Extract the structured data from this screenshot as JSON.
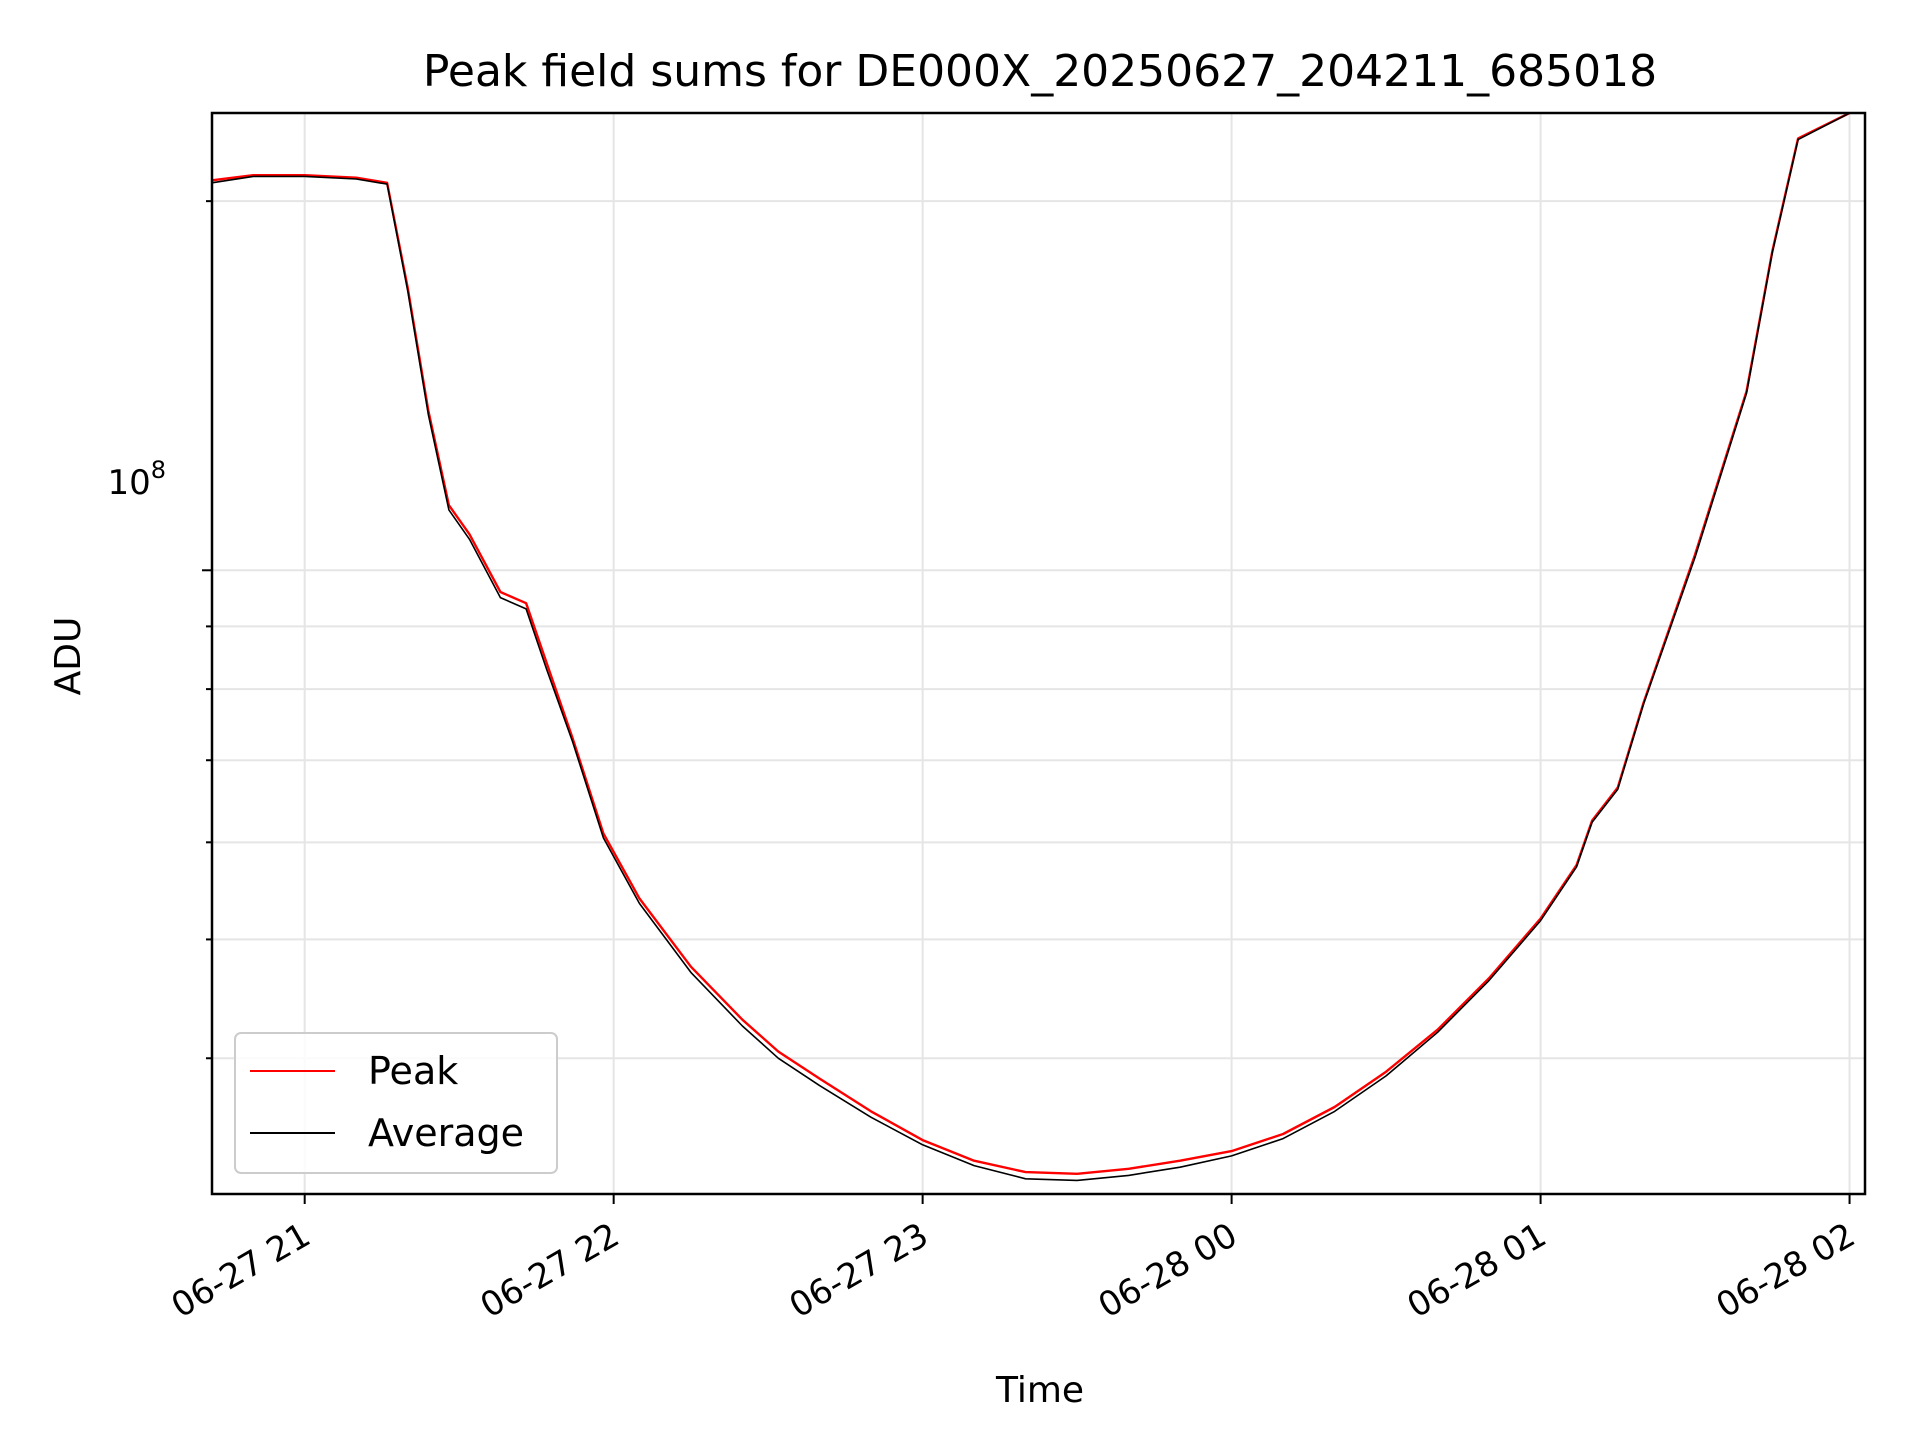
{
  "chart_data": {
    "type": "line",
    "title": "Peak field sums for DE000X_20250627_204211_685018",
    "xlabel": "Time",
    "ylabel": "ADU",
    "yscale": "log",
    "grid": true,
    "legend_position": "lower-left",
    "xlim": [
      "2025-06-27 20:42",
      "2025-06-28 02:03"
    ],
    "ylim": [
      31000000,
      236000000
    ],
    "x_ticks": [
      "06-27 21",
      "06-27 22",
      "06-27 23",
      "06-28 00",
      "06-28 01",
      "06-28 02"
    ],
    "y_tick_label": {
      "base": "10",
      "exponent": "8"
    },
    "colors": {
      "Peak": "#ff0000",
      "Average": "#000000",
      "grid": "#e5e5e5"
    },
    "series": [
      {
        "name": "Peak",
        "x": [
          "2025-06-27 20:42",
          "2025-06-27 20:50",
          "2025-06-27 21:00",
          "2025-06-27 21:10",
          "2025-06-27 21:16",
          "2025-06-27 21:20",
          "2025-06-27 21:24",
          "2025-06-27 21:28",
          "2025-06-27 21:32",
          "2025-06-27 21:38",
          "2025-06-27 21:43",
          "2025-06-27 21:47",
          "2025-06-27 21:52",
          "2025-06-27 21:58",
          "2025-06-27 22:05",
          "2025-06-27 22:15",
          "2025-06-27 22:25",
          "2025-06-27 22:32",
          "2025-06-27 22:40",
          "2025-06-27 22:50",
          "2025-06-27 23:00",
          "2025-06-27 23:10",
          "2025-06-27 23:20",
          "2025-06-27 23:30",
          "2025-06-27 23:40",
          "2025-06-27 23:50",
          "2025-06-28 00:00",
          "2025-06-28 00:10",
          "2025-06-28 00:20",
          "2025-06-28 00:30",
          "2025-06-28 00:40",
          "2025-06-28 00:50",
          "2025-06-28 01:00",
          "2025-06-28 01:07",
          "2025-06-28 01:10",
          "2025-06-28 01:15",
          "2025-06-28 01:20",
          "2025-06-28 01:30",
          "2025-06-28 01:40",
          "2025-06-28 01:45",
          "2025-06-28 01:50",
          "2025-06-28 02:00"
        ],
        "y": [
          208000000,
          210000000,
          210000000,
          209000000,
          207000000,
          170000000,
          135000000,
          113000000,
          107000000,
          96000000,
          94000000,
          84000000,
          73000000,
          61000000,
          54000000,
          47500000,
          43000000,
          40500000,
          38500000,
          36200000,
          34300000,
          33000000,
          32300000,
          32200000,
          32500000,
          33000000,
          33600000,
          34700000,
          36500000,
          39000000,
          42200000,
          46500000,
          52000000,
          57500000,
          62500000,
          66500000,
          78000000,
          103000000,
          140000000,
          182000000,
          225000000,
          236000000
        ]
      },
      {
        "name": "Average",
        "x": [
          "2025-06-27 20:42",
          "2025-06-27 20:50",
          "2025-06-27 21:00",
          "2025-06-27 21:10",
          "2025-06-27 21:16",
          "2025-06-27 21:20",
          "2025-06-27 21:24",
          "2025-06-27 21:28",
          "2025-06-27 21:32",
          "2025-06-27 21:38",
          "2025-06-27 21:43",
          "2025-06-27 21:47",
          "2025-06-27 21:52",
          "2025-06-27 21:58",
          "2025-06-27 22:05",
          "2025-06-27 22:15",
          "2025-06-27 22:25",
          "2025-06-27 22:32",
          "2025-06-27 22:40",
          "2025-06-27 22:50",
          "2025-06-27 23:00",
          "2025-06-27 23:10",
          "2025-06-27 23:20",
          "2025-06-27 23:30",
          "2025-06-27 23:40",
          "2025-06-27 23:50",
          "2025-06-28 00:00",
          "2025-06-28 00:10",
          "2025-06-28 00:20",
          "2025-06-28 00:30",
          "2025-06-28 00:40",
          "2025-06-28 00:50",
          "2025-06-28 01:00",
          "2025-06-28 01:07",
          "2025-06-28 01:10",
          "2025-06-28 01:15",
          "2025-06-28 01:20",
          "2025-06-28 01:30",
          "2025-06-28 01:40",
          "2025-06-28 01:45",
          "2025-06-28 01:50",
          "2025-06-28 02:00"
        ],
        "y": [
          207000000,
          209500000,
          209500000,
          208500000,
          206500000,
          169000000,
          134000000,
          112000000,
          106000000,
          95000000,
          93000000,
          83000000,
          72500000,
          60500000,
          53500000,
          47000000,
          42500000,
          40000000,
          38000000,
          35800000,
          34000000,
          32700000,
          31900000,
          31800000,
          32100000,
          32600000,
          33300000,
          34400000,
          36200000,
          38700000,
          42000000,
          46300000,
          51800000,
          57300000,
          62300000,
          66300000,
          77800000,
          102500000,
          139500000,
          181500000,
          224500000,
          236000000
        ]
      }
    ]
  }
}
